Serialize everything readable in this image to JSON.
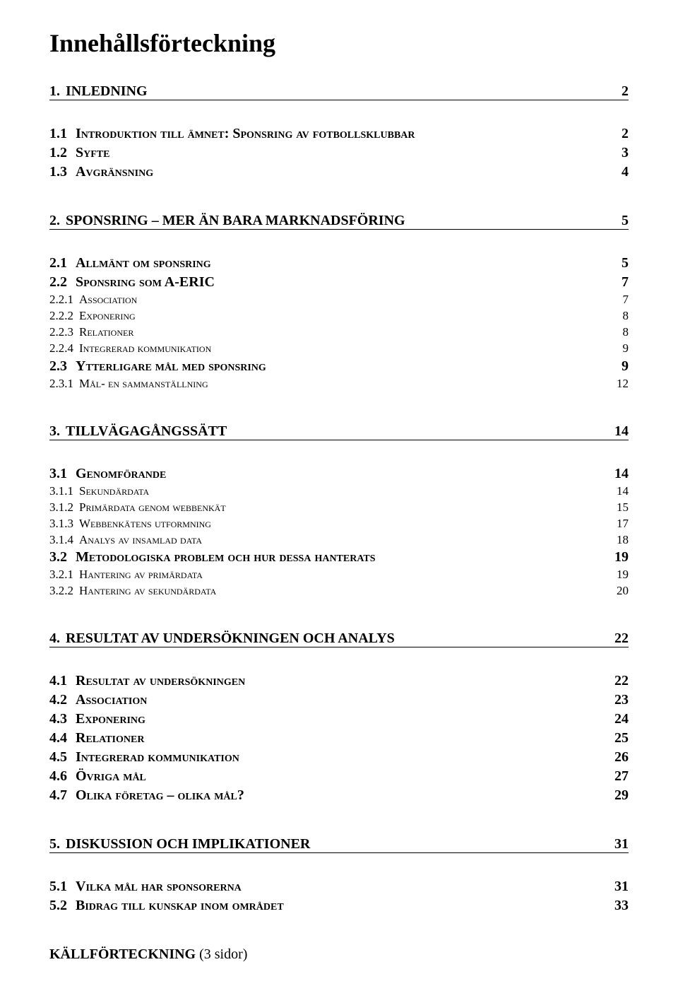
{
  "title": "Innehållsförteckning",
  "sections": [
    {
      "num": "1.",
      "label": "INLEDNING",
      "page": "2",
      "entries": [
        {
          "num": "1.1",
          "label": "Introduktion till ämnet: Sponsring av fotbollsklubbar",
          "page": "2",
          "level": 1
        },
        {
          "num": "1.2",
          "label": "Syfte",
          "page": "3",
          "level": 1
        },
        {
          "num": "1.3",
          "label": "Avgränsning",
          "page": "4",
          "level": 1
        }
      ]
    },
    {
      "num": "2.",
      "label": "SPONSRING – MER ÄN BARA MARKNADSFÖRING",
      "page": "5",
      "entries": [
        {
          "num": "2.1",
          "label": "Allmänt om sponsring",
          "page": "5",
          "level": 1
        },
        {
          "num": "2.2",
          "label": "Sponsring som A-ERIC",
          "page": "7",
          "level": 1
        },
        {
          "num": "2.2.1",
          "label": "Association",
          "page": "7",
          "level": 2
        },
        {
          "num": "2.2.2",
          "label": "Exponering",
          "page": "8",
          "level": 2
        },
        {
          "num": "2.2.3",
          "label": "Relationer",
          "page": "8",
          "level": 2
        },
        {
          "num": "2.2.4",
          "label": "Integrerad kommunikation",
          "page": "9",
          "level": 2
        },
        {
          "num": "2.3",
          "label": "Ytterligare mål med sponsring",
          "page": "9",
          "level": 1
        },
        {
          "num": "2.3.1",
          "label": "Mål- en sammanställning",
          "page": "12",
          "level": 2
        }
      ]
    },
    {
      "num": "3.",
      "label": "TILLVÄGAGÅNGSSÄTT",
      "page": "14",
      "entries": [
        {
          "num": "3.1",
          "label": "Genomförande",
          "page": "14",
          "level": 1
        },
        {
          "num": "3.1.1",
          "label": "Sekundärdata",
          "page": "14",
          "level": 2
        },
        {
          "num": "3.1.2",
          "label": "Primärdata genom webbenkät",
          "page": "15",
          "level": 2
        },
        {
          "num": "3.1.3",
          "label": "Webbenkätens utformning",
          "page": "17",
          "level": 2
        },
        {
          "num": "3.1.4",
          "label": "Analys av insamlad data",
          "page": "18",
          "level": 2
        },
        {
          "num": "3.2",
          "label": "Metodologiska problem och hur dessa hanterats",
          "page": "19",
          "level": 1
        },
        {
          "num": "3.2.1",
          "label": "Hantering av primärdata",
          "page": "19",
          "level": 2
        },
        {
          "num": "3.2.2",
          "label": "Hantering av sekundärdata",
          "page": "20",
          "level": 2
        }
      ]
    },
    {
      "num": "4.",
      "label": "RESULTAT AV UNDERSÖKNINGEN OCH ANALYS",
      "page": "22",
      "entries": [
        {
          "num": "4.1",
          "label": "Resultat av undersökningen",
          "page": "22",
          "level": 1
        },
        {
          "num": "4.2",
          "label": "Association",
          "page": "23",
          "level": 1
        },
        {
          "num": "4.3",
          "label": "Exponering",
          "page": "24",
          "level": 1
        },
        {
          "num": "4.4",
          "label": "Relationer",
          "page": "25",
          "level": 1
        },
        {
          "num": "4.5",
          "label": "Integrerad kommunikation",
          "page": "26",
          "level": 1
        },
        {
          "num": "4.6",
          "label": "Övriga mål",
          "page": "27",
          "level": 1
        },
        {
          "num": "4.7",
          "label": "Olika företag – olika mål?",
          "page": "29",
          "level": 1
        }
      ]
    },
    {
      "num": "5.",
      "label": "DISKUSSION OCH IMPLIKATIONER",
      "page": "31",
      "entries": [
        {
          "num": "5.1",
          "label": "Vilka mål har sponsorerna",
          "page": "31",
          "level": 1
        },
        {
          "num": "5.2",
          "label": "Bidrag till kunskap inom området",
          "page": "33",
          "level": 1
        }
      ]
    }
  ],
  "footer": {
    "bold": "KÄLLFÖRTECKNING",
    "paren": " (3 sidor)"
  },
  "colors": {
    "text": "#000000",
    "background": "#ffffff",
    "underline": "#000000"
  },
  "fonts": {
    "family": "Times New Roman",
    "title_size": 36,
    "heading_size": 20,
    "entry_size": 20,
    "sub_size": 17
  }
}
